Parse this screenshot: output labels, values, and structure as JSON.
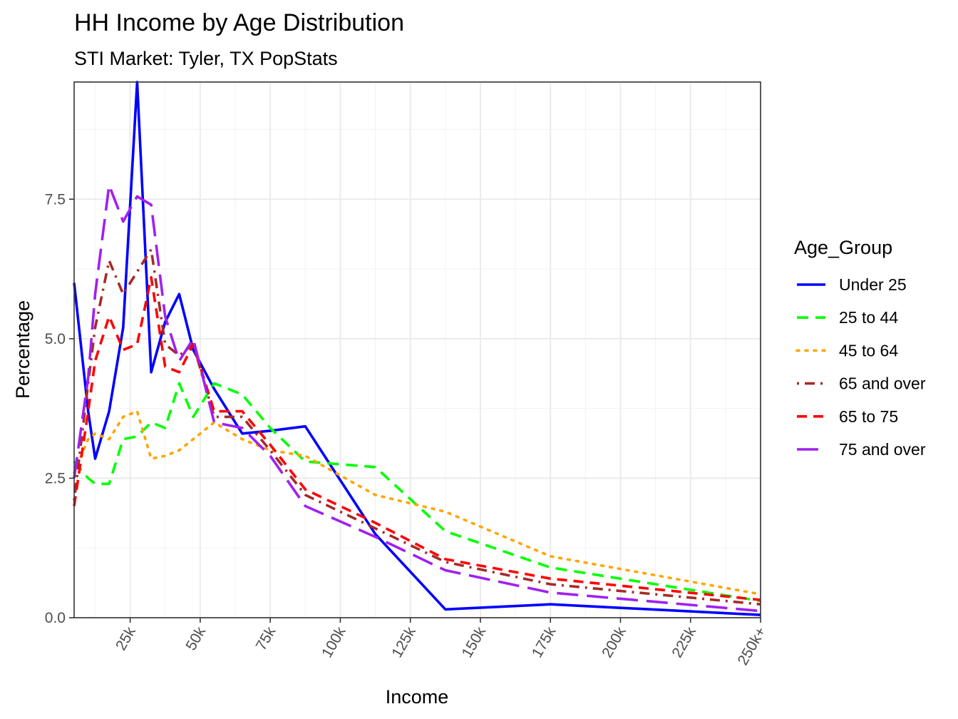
{
  "chart_data": {
    "type": "line",
    "title": "HH Income by Age Distribution",
    "subtitle": "STI Market: Tyler, TX PopStats",
    "xlabel": "Income",
    "ylabel": "Percentage",
    "xlim": [
      5,
      250
    ],
    "ylim": [
      0,
      9.6
    ],
    "x_ticks": [
      {
        "value": 25,
        "label": "25k"
      },
      {
        "value": 50,
        "label": "50k"
      },
      {
        "value": 75,
        "label": "75k"
      },
      {
        "value": 100,
        "label": "100k"
      },
      {
        "value": 125,
        "label": "125k"
      },
      {
        "value": 150,
        "label": "150k"
      },
      {
        "value": 175,
        "label": "175k"
      },
      {
        "value": 200,
        "label": "200k"
      },
      {
        "value": 225,
        "label": "225k"
      },
      {
        "value": 250,
        "label": "250k+"
      }
    ],
    "y_ticks": [
      {
        "value": 0,
        "label": "0.0"
      },
      {
        "value": 2.5,
        "label": "2.5"
      },
      {
        "value": 5,
        "label": "5.0"
      },
      {
        "value": 7.5,
        "label": "7.5"
      }
    ],
    "grid": true,
    "legend": {
      "title": "Age_Group",
      "position": "right"
    },
    "series": [
      {
        "name": "Under 25",
        "color": "#0000FF",
        "dash": "solid",
        "x": [
          5,
          10,
          12.5,
          17.5,
          22.5,
          27.5,
          32.5,
          37.5,
          42.5,
          47.5,
          55,
          65,
          75,
          87.5,
          112.5,
          137.5,
          175,
          250
        ],
        "y": [
          6.0,
          3.7,
          2.85,
          3.7,
          5.2,
          9.6,
          4.4,
          5.3,
          5.8,
          4.8,
          4.1,
          3.3,
          3.35,
          3.43,
          1.5,
          0.15,
          0.24,
          0.05
        ]
      },
      {
        "name": "25 to 44",
        "color": "#00FF00",
        "dash": "dashed",
        "x": [
          5,
          10,
          12.5,
          17.5,
          22.5,
          27.5,
          32.5,
          37.5,
          42.5,
          47.5,
          55,
          65,
          75,
          87.5,
          112.5,
          137.5,
          175,
          250
        ],
        "y": [
          2.8,
          2.5,
          2.4,
          2.4,
          3.2,
          3.25,
          3.5,
          3.4,
          4.2,
          3.6,
          4.2,
          4.0,
          3.4,
          2.8,
          2.7,
          1.55,
          0.9,
          0.3
        ]
      },
      {
        "name": "45 to 64",
        "color": "#FFA500",
        "dash": "dotted",
        "x": [
          5,
          10,
          12.5,
          17.5,
          22.5,
          27.5,
          32.5,
          37.5,
          42.5,
          47.5,
          55,
          65,
          75,
          87.5,
          112.5,
          137.5,
          175,
          250
        ],
        "y": [
          2.6,
          3.2,
          3.3,
          3.2,
          3.6,
          3.7,
          2.85,
          2.9,
          3.0,
          3.2,
          3.5,
          3.2,
          3.0,
          2.9,
          2.2,
          1.9,
          1.1,
          0.42
        ]
      },
      {
        "name": "65 and over",
        "color": "#A52A2A",
        "dash": "dotdash",
        "x": [
          5,
          10,
          12.5,
          17.5,
          22.5,
          27.5,
          32.5,
          37.5,
          42.5,
          47.5,
          55,
          65,
          75,
          87.5,
          112.5,
          137.5,
          175,
          250
        ],
        "y": [
          2.1,
          4.2,
          5.2,
          6.4,
          5.8,
          6.2,
          6.6,
          4.9,
          4.7,
          4.9,
          3.6,
          3.6,
          3.0,
          2.2,
          1.6,
          1.0,
          0.6,
          0.24
        ]
      },
      {
        "name": "65 to 75",
        "color": "#FF0000",
        "dash": "longdash-short",
        "x": [
          5,
          10,
          12.5,
          17.5,
          22.5,
          27.5,
          32.5,
          37.5,
          42.5,
          47.5,
          55,
          65,
          75,
          87.5,
          112.5,
          137.5,
          175,
          250
        ],
        "y": [
          2.0,
          3.7,
          4.6,
          5.4,
          4.8,
          4.9,
          6.1,
          4.5,
          4.4,
          4.9,
          3.7,
          3.7,
          3.1,
          2.3,
          1.7,
          1.05,
          0.7,
          0.32
        ]
      },
      {
        "name": "75 and over",
        "color": "#A020F0",
        "dash": "longdash",
        "x": [
          5,
          10,
          12.5,
          17.5,
          22.5,
          27.5,
          32.5,
          37.5,
          42.5,
          47.5,
          55,
          65,
          75,
          87.5,
          112.5,
          137.5,
          175,
          250
        ],
        "y": [
          2.5,
          4.3,
          5.8,
          7.75,
          7.1,
          7.55,
          7.4,
          5.4,
          4.6,
          5.0,
          3.5,
          3.4,
          2.9,
          2.0,
          1.45,
          0.85,
          0.45,
          0.12
        ]
      }
    ]
  }
}
